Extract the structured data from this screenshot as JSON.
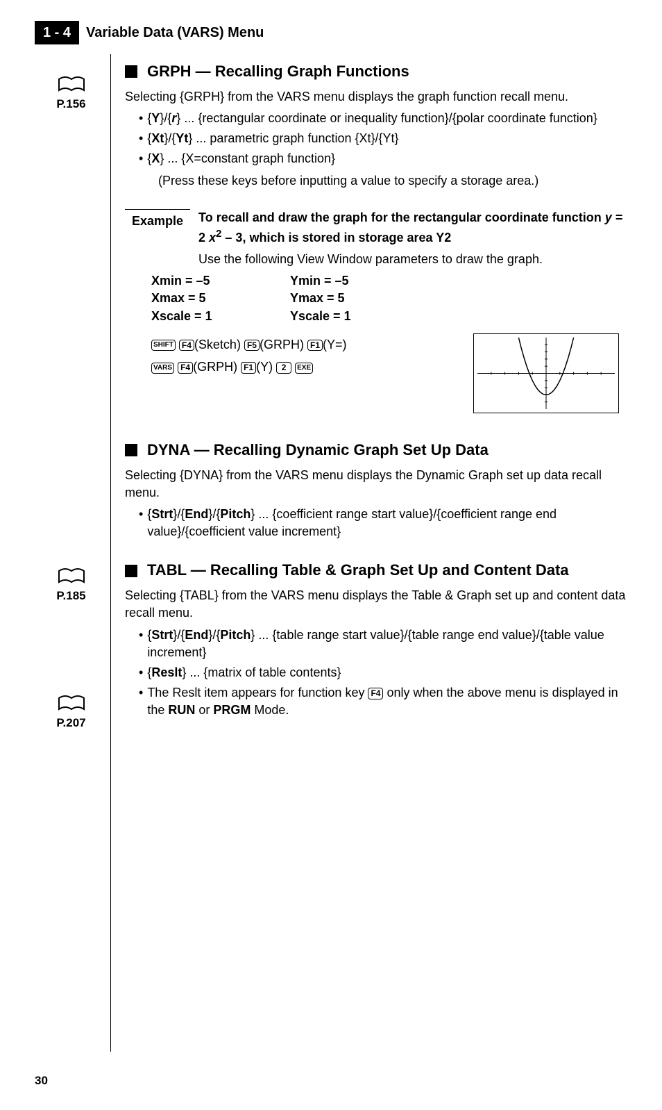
{
  "header": {
    "badge": "1 - 4",
    "title": "Variable Data (VARS) Menu"
  },
  "refs": {
    "r1": "P.156",
    "r2": "P.185",
    "r3": "P.207"
  },
  "grph": {
    "heading": "GRPH — Recalling Graph Functions",
    "intro": "Selecting {GRPH} from the VARS menu displays the graph function recall menu.",
    "b1_a": "{",
    "b1_b": "Y",
    "b1_c": "}/{",
    "b1_d": "r",
    "b1_e": "} ... {rectangular coordinate or inequality function}/{polar coordinate function}",
    "b2_a": "{",
    "b2_b": "Xt",
    "b2_c": "}/{",
    "b2_d": "Yt",
    "b2_e": "} ... parametric graph function {Xt}/{Yt}",
    "b3_a": "{",
    "b3_b": "X",
    "b3_c": "} ... {X=constant graph function}",
    "press_note": "(Press these keys before inputting a value to specify a storage area.)",
    "example_label": "Example",
    "example_l1_a": "To recall and draw the graph for the rectangular coordinate function ",
    "example_l1_y": "y",
    "example_l1_eq": " = 2",
    "example_l1_x": " x",
    "example_l1_sq": "2",
    "example_l1_rest": " – 3, which is stored in storage area Y2",
    "example_use": "Use the following View Window parameters to draw the graph.",
    "xmin": "Xmin   = –5",
    "ymin": "Ymin   = –5",
    "xmax": "Xmax  =  5",
    "ymax": "Ymax  =  5",
    "xscale": "Xscale =  1",
    "yscale": "Yscale =  1",
    "k_shift": "SHIFT",
    "k_f4": "F4",
    "k_sketch": "(Sketch)",
    "k_f5": "F5",
    "k_grph": "(GRPH)",
    "k_f1": "F1",
    "k_yeq": "(Y=)",
    "k_vars": "VARS",
    "k_y": "(Y)",
    "k_2": "2",
    "k_exe": "EXE"
  },
  "dyna": {
    "heading": "DYNA — Recalling Dynamic Graph Set Up Data",
    "intro": "Selecting {DYNA} from the VARS menu displays the Dynamic Graph set up data recall menu.",
    "b1_a": "{",
    "b1_b": "Strt",
    "b1_c": "}/{",
    "b1_d": "End",
    "b1_e": "}/{",
    "b1_f": "Pitch",
    "b1_g": "} ... {coefficient range start value}/{coefficient range end value}/{coefficient value increment}"
  },
  "tabl": {
    "heading": "TABL — Recalling Table & Graph Set Up and Content Data",
    "intro": "Selecting {TABL} from the VARS menu displays the Table & Graph set up and content data recall menu.",
    "b1_a": "{",
    "b1_b": "Strt",
    "b1_c": "}/{",
    "b1_d": "End",
    "b1_e": "}/{",
    "b1_f": "Pitch",
    "b1_g": "} ... {table range start value}/{table range end value}/{table value increment}",
    "b2_a": "{",
    "b2_b": "Reslt",
    "b2_c": "} ... {matrix of table contents}",
    "b3_a": "The Reslt item appears for function key ",
    "b3_key": "F4",
    "b3_b": " only when the above menu is displayed in the ",
    "b3_run": "RUN",
    "b3_or": " or ",
    "b3_prgm": "PRGM",
    "b3_end": " Mode."
  },
  "page_number": "30",
  "graph": {
    "bg": "#ffffff",
    "axis_color": "#000000",
    "curve_color": "#000000",
    "xlim": [
      -5,
      5
    ],
    "ylim": [
      -5,
      5
    ],
    "curve_samples": [
      [
        -2.0,
        5.0
      ],
      [
        -1.8,
        3.48
      ],
      [
        -1.6,
        2.12
      ],
      [
        -1.4,
        0.92
      ],
      [
        -1.2,
        -0.12
      ],
      [
        -1.0,
        -1.0
      ],
      [
        -0.8,
        -1.72
      ],
      [
        -0.6,
        -2.28
      ],
      [
        -0.4,
        -2.68
      ],
      [
        -0.2,
        -2.92
      ],
      [
        0.0,
        -3.0
      ],
      [
        0.2,
        -2.92
      ],
      [
        0.4,
        -2.68
      ],
      [
        0.6,
        -2.28
      ],
      [
        0.8,
        -1.72
      ],
      [
        1.0,
        -1.0
      ],
      [
        1.2,
        -0.12
      ],
      [
        1.4,
        0.92
      ],
      [
        1.6,
        2.12
      ],
      [
        1.8,
        3.48
      ],
      [
        2.0,
        5.0
      ]
    ],
    "ticks_x": [
      -4,
      -3,
      -2,
      -1,
      1,
      2,
      3,
      4
    ],
    "ticks_y": [
      -4,
      -3,
      -2,
      -1,
      1,
      2,
      3,
      4
    ]
  }
}
